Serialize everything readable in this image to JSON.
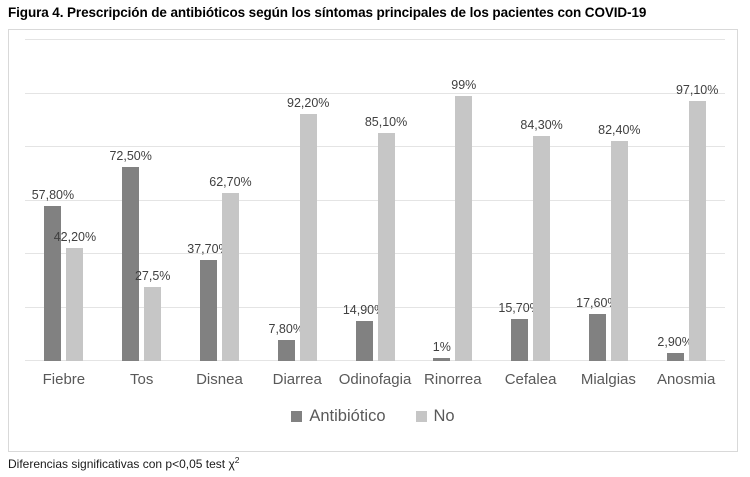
{
  "figure": {
    "title": "Figura 4. Prescripción de antibióticos según los síntomas principales de los pacientes con COVID-19",
    "footnote_main": "Diferencias significativas con p<0,05 test χ",
    "footnote_sup": "2"
  },
  "chart_data": {
    "type": "bar",
    "title": "",
    "xlabel": "",
    "ylabel": "",
    "categories": [
      "Fiebre",
      "Tos",
      "Disnea",
      "Diarrea",
      "Odinofagia",
      "Rinorrea",
      "Cefalea",
      "Mialgias",
      "Anosmia"
    ],
    "series": [
      {
        "name": "Antibiótico",
        "key": "antibiotico",
        "color": "#818181",
        "values": [
          57.8,
          72.5,
          37.7,
          7.8,
          14.9,
          1,
          15.7,
          17.6,
          2.9
        ],
        "labels": [
          "57,80%",
          "72,50%",
          "37,70%",
          "7,80%",
          "14,90%",
          "1%",
          "15,70%",
          "17,60%",
          "2,90%"
        ]
      },
      {
        "name": "No",
        "key": "no",
        "color": "#c6c6c6",
        "values": [
          42.2,
          27.5,
          62.7,
          92.2,
          85.1,
          99,
          84.3,
          82.4,
          97.1
        ],
        "labels": [
          "42,20%",
          "27,5%",
          "62,70%",
          "92,20%",
          "85,10%",
          "99%",
          "84,30%",
          "82,40%",
          "97,10%"
        ]
      }
    ],
    "ylim": [
      0,
      120
    ],
    "gridline_step": 20,
    "grid": true,
    "y_tick_labels_visible": false,
    "legend_position": "bottom",
    "gridline_color": "#e4e4e4",
    "label_color": "#404040",
    "axis_text_color": "#595959"
  }
}
